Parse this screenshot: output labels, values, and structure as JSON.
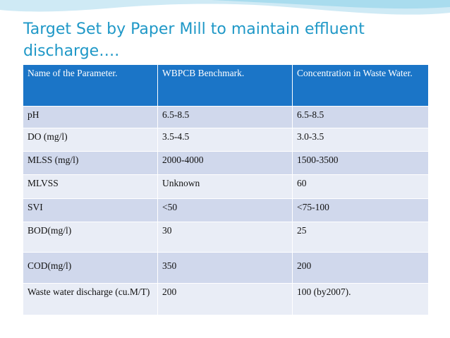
{
  "slide": {
    "title": "Target Set by Paper Mill to maintain effluent discharge….",
    "accent_color": "#1b75c7",
    "title_color": "#1f98c7"
  },
  "table": {
    "headers": [
      "Name of  the Parameter.",
      "WBPCB Benchmark.",
      "Concentration  in Waste Water."
    ],
    "rows": [
      [
        "pH",
        "6.5-8.5",
        "6.5-8.5"
      ],
      [
        "DO (mg/l)",
        "3.5-4.5",
        "3.0-3.5"
      ],
      [
        "MLSS (mg/l)",
        "2000-4000",
        "1500-3500"
      ],
      [
        "MLVSS",
        "Unknown",
        "60"
      ],
      [
        "SVI",
        "<50",
        "<75-100"
      ],
      [
        "BOD(mg/l)",
        "30",
        "25"
      ],
      [
        "COD(mg/l)",
        "350",
        "200"
      ],
      [
        "Waste water discharge (cu.M/T)",
        "200",
        "100 (by2007)."
      ]
    ]
  }
}
